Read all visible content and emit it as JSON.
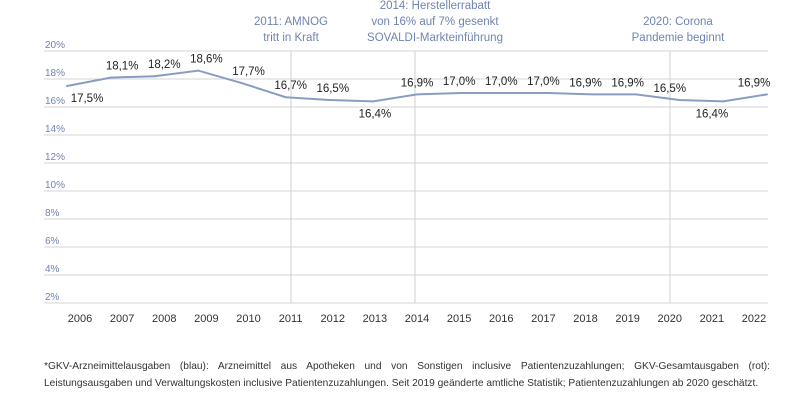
{
  "chart_data": {
    "type": "line",
    "title": "",
    "xlabel": "",
    "ylabel": "",
    "categories": [
      "2006",
      "2007",
      "2008",
      "2009",
      "2010",
      "2011",
      "2012",
      "2013",
      "2014",
      "2015",
      "2016",
      "2017",
      "2018",
      "2019",
      "2020",
      "2021",
      "2022"
    ],
    "values": [
      17.5,
      18.1,
      18.2,
      18.6,
      17.7,
      16.7,
      16.5,
      16.4,
      16.9,
      17.0,
      17.0,
      17.0,
      16.9,
      16.9,
      16.5,
      16.4,
      16.9
    ],
    "data_labels": [
      "17,5%",
      "18,1%",
      "18,2%",
      "18,6%",
      "17,7%",
      "16,7%",
      "16,5%",
      "16,4%",
      "16,9%",
      "17,0%",
      "17,0%",
      "17,0%",
      "16,9%",
      "16,9%",
      "16,5%",
      "16,4%",
      "16,9%"
    ],
    "yticks": [
      2,
      4,
      6,
      8,
      10,
      12,
      14,
      16,
      18,
      20
    ],
    "ytick_labels": [
      "2%",
      "4%",
      "6%",
      "8%",
      "10%",
      "12%",
      "14%",
      "16%",
      "18%",
      "20%"
    ],
    "ylim": [
      2,
      20
    ],
    "grid": true,
    "line_color": "#8a9cc4",
    "axis_label_color": "#6f84b0",
    "annotations": [
      {
        "year": "2011",
        "lines": [
          "2011: AMNOG",
          "tritt in Kraft"
        ]
      },
      {
        "year": "2014",
        "lines": [
          "2014: Herstellerrabatt",
          "von 16% auf 7% gesenkt",
          "SOVALDI-Markteinführung"
        ]
      },
      {
        "year": "2020",
        "lines": [
          "2020: Corona",
          "Pandemie beginnt"
        ]
      }
    ]
  },
  "footnote": "*GKV-Arzneimittelausgaben (blau): Arzneimittel aus Apotheken und von Sonstigen inclusive Patientenzuzahlungen; GKV-Gesamtausgaben (rot): Leistungsausgaben und Verwaltungskosten inclusive Patientenzuzahlungen. Seit 2019 geänderte amtliche Statistik; Patientenzuzahlungen ab 2020 geschätzt."
}
